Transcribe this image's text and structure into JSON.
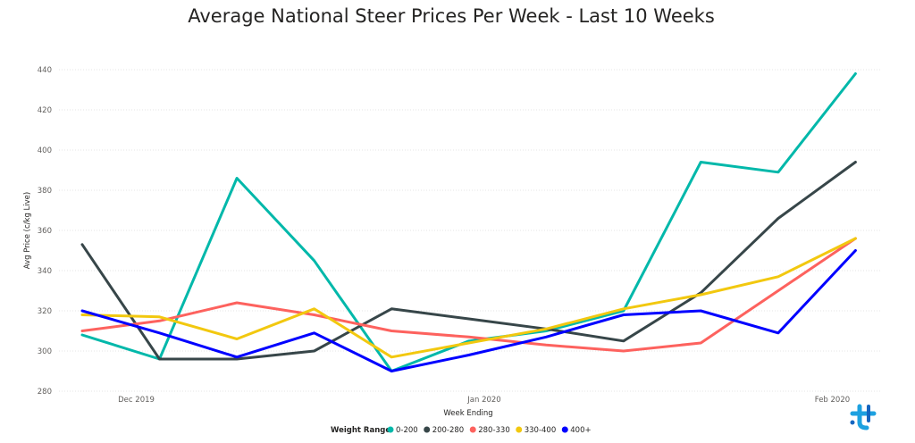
{
  "chart_data": {
    "type": "line",
    "title": "Average National Steer Prices Per Week - Last 10 Weeks",
    "xlabel": "Week Ending",
    "ylabel": "Avg Price (c/kg Live)",
    "ylim": [
      280,
      440
    ],
    "yticks": [
      280,
      300,
      320,
      340,
      360,
      380,
      400,
      420,
      440
    ],
    "xtick_labels": [
      "Dec 2019",
      "Jan 2020",
      "Feb 2020"
    ],
    "xtick_positions": [
      1,
      5.5,
      10
    ],
    "x": [
      0.3,
      1.3,
      2.3,
      3.3,
      4.3,
      5.3,
      6.3,
      7.3,
      8.3,
      9.3,
      10.3
    ],
    "grid": true,
    "legend_title": "Weight Range",
    "legend_position": "bottom",
    "series": [
      {
        "name": "0-200",
        "color": "#01B8AA",
        "values": [
          308,
          296,
          386,
          345,
          290,
          305,
          310,
          320,
          394,
          389,
          438
        ]
      },
      {
        "name": "200-280",
        "color": "#374649",
        "values": [
          353,
          296,
          296,
          300,
          321,
          316,
          311,
          305,
          329,
          366,
          394
        ]
      },
      {
        "name": "280-330",
        "color": "#FD625E",
        "values": [
          310,
          315,
          324,
          318,
          310,
          307,
          303,
          300,
          304,
          330,
          356
        ]
      },
      {
        "name": "330-400",
        "color": "#F2C80F",
        "values": [
          318,
          317,
          306,
          321,
          297,
          304,
          311,
          321,
          328,
          337,
          356
        ]
      },
      {
        "name": "400+",
        "color": "#0000FF",
        "values": [
          320,
          309,
          297,
          309,
          290,
          298,
          307,
          318,
          320,
          309,
          350
        ]
      }
    ]
  }
}
